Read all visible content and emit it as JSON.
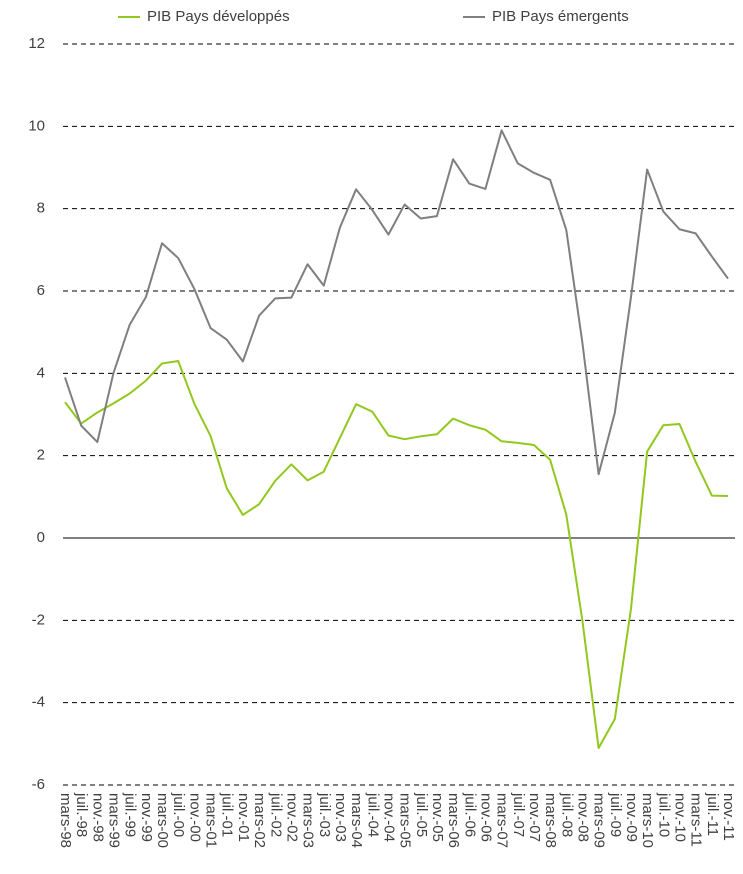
{
  "chart_data": {
    "type": "line",
    "categories": [
      "mars-98",
      "juil.-98",
      "nov.-98",
      "mars-99",
      "juil.-99",
      "nov.-99",
      "mars-00",
      "juil.-00",
      "nov.-00",
      "mars-01",
      "juil.-01",
      "nov.-01",
      "mars-02",
      "juil.-02",
      "nov.-02",
      "mars-03",
      "juil.-03",
      "nov.-03",
      "mars-04",
      "juil.-04",
      "nov.-04",
      "mars-05",
      "juil.-05",
      "nov.-05",
      "mars-06",
      "juil.-06",
      "nov.-06",
      "mars-07",
      "juil.-07",
      "nov.-07",
      "mars-08",
      "juil.-08",
      "nov.-08",
      "mars-09",
      "juil.-09",
      "nov.-09",
      "mars-10",
      "juil.-10",
      "nov.-10",
      "mars-11",
      "juil.-11",
      "nov.-11"
    ],
    "series": [
      {
        "name": "PIB Pays développés",
        "color": "#92c81e",
        "values": [
          3.3,
          2.78,
          3.05,
          3.27,
          3.51,
          3.82,
          4.24,
          4.3,
          3.26,
          2.48,
          1.21,
          0.56,
          0.82,
          1.39,
          1.79,
          1.4,
          1.61,
          2.43,
          3.25,
          3.07,
          2.49,
          2.4,
          2.47,
          2.52,
          2.9,
          2.74,
          2.63,
          2.35,
          2.31,
          2.26,
          1.9,
          0.57,
          -2.02,
          -5.1,
          -4.4,
          -1.72,
          2.1,
          2.74,
          2.77,
          1.85,
          1.03,
          1.02
        ]
      },
      {
        "name": "PIB Pays émergents",
        "color": "#7f7f7f",
        "values": [
          3.9,
          2.73,
          2.33,
          4.01,
          5.18,
          5.85,
          7.16,
          6.8,
          6.05,
          5.1,
          4.82,
          4.29,
          5.4,
          5.82,
          5.84,
          6.65,
          6.13,
          7.54,
          8.47,
          7.97,
          7.37,
          8.1,
          7.76,
          7.82,
          9.2,
          8.61,
          8.48,
          9.9,
          9.1,
          8.87,
          8.7,
          7.48,
          4.73,
          1.55,
          3.04,
          5.85,
          8.95,
          7.93,
          7.5,
          7.4,
          6.84,
          6.3
        ]
      }
    ],
    "ylim": [
      -6,
      12
    ],
    "yticks": [
      -6,
      -4,
      -2,
      0,
      2,
      4,
      6,
      8,
      10,
      12
    ],
    "grid": true,
    "legend": "top"
  }
}
